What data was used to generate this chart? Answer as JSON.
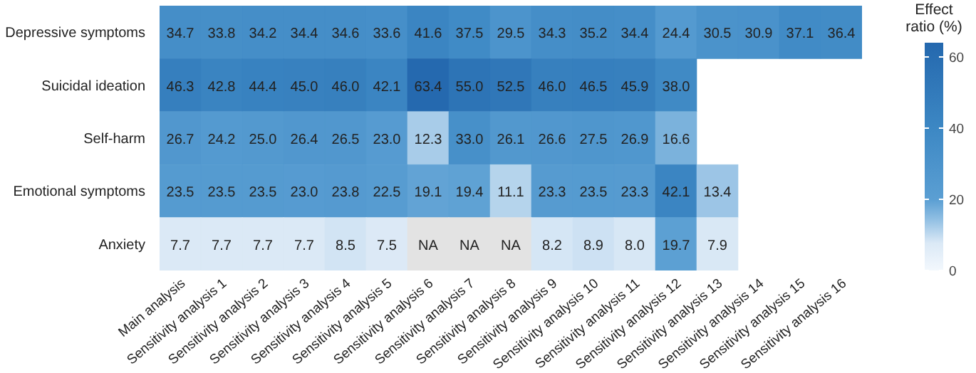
{
  "chart_data": {
    "type": "heatmap",
    "categories": [
      "Main analysis",
      "Sensitivity analysis 1",
      "Sensitivity analysis 2",
      "Sensitivity analysis 3",
      "Sensitivity analysis 4",
      "Sensitivity analysis 5",
      "Sensitivity analysis 6",
      "Sensitivity analysis 7",
      "Sensitivity analysis 8",
      "Sensitivity analysis 9",
      "Sensitivity analysis 10",
      "Sensitivity analysis 11",
      "Sensitivity analysis 12",
      "Sensitivity analysis 13",
      "Sensitivity analysis 14",
      "Sensitivity analysis 15",
      "Sensitivity analysis 16"
    ],
    "y_categories": [
      "Depressive symptoms",
      "Suicidal ideation",
      "Self-harm",
      "Emotional symptoms",
      "Anxiety"
    ],
    "cells": [
      [
        34.7,
        33.8,
        34.2,
        34.4,
        34.6,
        33.6,
        41.6,
        37.5,
        29.5,
        34.3,
        35.2,
        34.4,
        24.4,
        30.5,
        30.9,
        37.1,
        36.4
      ],
      [
        46.3,
        42.8,
        44.4,
        45.0,
        46.0,
        42.1,
        63.4,
        55.0,
        52.5,
        46.0,
        46.5,
        45.9,
        38.0,
        null,
        null,
        null,
        null
      ],
      [
        26.7,
        24.2,
        25.0,
        26.4,
        26.5,
        23.0,
        12.3,
        33.0,
        26.1,
        26.6,
        27.5,
        26.9,
        16.6,
        null,
        null,
        null,
        null
      ],
      [
        23.5,
        23.5,
        23.5,
        23.0,
        23.8,
        22.5,
        19.1,
        19.4,
        11.1,
        23.3,
        23.5,
        23.3,
        42.1,
        13.4,
        null,
        null,
        null
      ],
      [
        7.7,
        7.7,
        7.7,
        7.7,
        8.5,
        7.5,
        null,
        null,
        null,
        8.2,
        8.9,
        8.0,
        19.7,
        7.9,
        null,
        null,
        null
      ]
    ],
    "cell_labels": [
      [
        "34.7",
        "33.8",
        "34.2",
        "34.4",
        "34.6",
        "33.6",
        "41.6",
        "37.5",
        "29.5",
        "34.3",
        "35.2",
        "34.4",
        "24.4",
        "30.5",
        "30.9",
        "37.1",
        "36.4"
      ],
      [
        "46.3",
        "42.8",
        "44.4",
        "45.0",
        "46.0",
        "42.1",
        "63.4",
        "55.0",
        "52.5",
        "46.0",
        "46.5",
        "45.9",
        "38.0",
        null,
        null,
        null,
        null
      ],
      [
        "26.7",
        "24.2",
        "25.0",
        "26.4",
        "26.5",
        "23.0",
        "12.3",
        "33.0",
        "26.1",
        "26.6",
        "27.5",
        "26.9",
        "16.6",
        null,
        null,
        null,
        null
      ],
      [
        "23.5",
        "23.5",
        "23.5",
        "23.0",
        "23.8",
        "22.5",
        "19.1",
        "19.4",
        "11.1",
        "23.3",
        "23.5",
        "23.3",
        "42.1",
        "13.4",
        null,
        null,
        null
      ],
      [
        "7.7",
        "7.7",
        "7.7",
        "7.7",
        "8.5",
        "7.5",
        "NA",
        "NA",
        "NA",
        "8.2",
        "8.9",
        "8.0",
        "19.7",
        "7.9",
        null,
        null,
        null
      ]
    ],
    "clabel": "Effect ratio (%)",
    "clim": [
      0,
      64
    ],
    "cticks": [
      0,
      20,
      40,
      60
    ]
  }
}
